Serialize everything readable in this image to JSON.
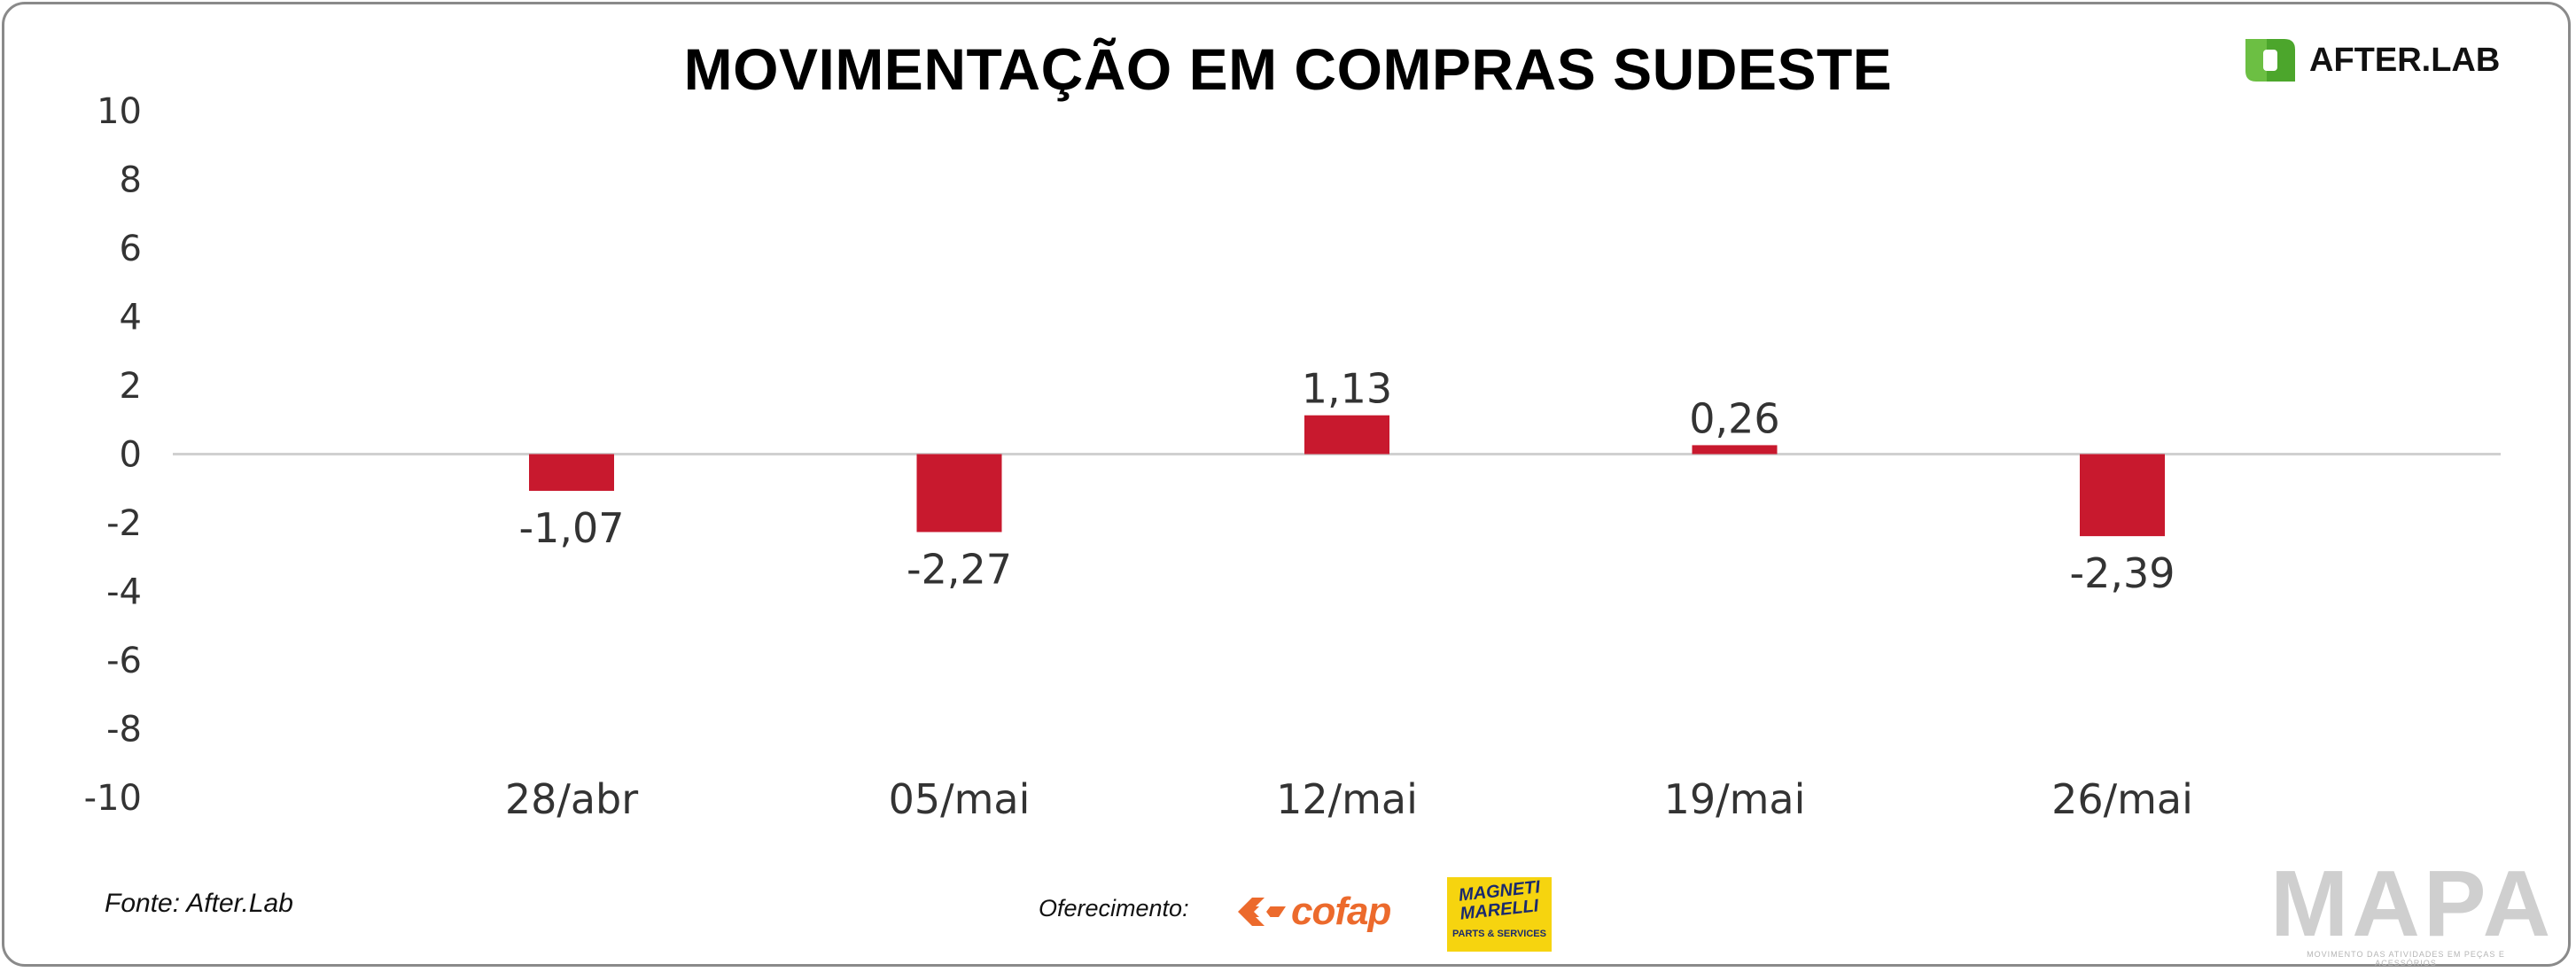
{
  "header": {
    "title": "MOVIMENTAÇÃO EM COMPRAS SUDESTE",
    "brand_name": "AFTER.LAB",
    "brand_color": "#6cbf43"
  },
  "footer": {
    "source": "Fonte: After.Lab",
    "sponsor_label": "Oferecimento:",
    "sponsor_1": "cofap",
    "sponsor_2_line1": "MAGNETI",
    "sponsor_2_line2": "MARELLI",
    "sponsor_2_line3": "PARTS & SERVICES",
    "watermark": "MAPA",
    "watermark_sub": "MOVIMENTO DAS ATIVIDADES EM PEÇAS E ACESSÓRIOS"
  },
  "chart_data": {
    "type": "bar",
    "title": "MOVIMENTAÇÃO EM COMPRAS SUDESTE",
    "categories": [
      "28/abr",
      "05/mai",
      "12/mai",
      "19/mai",
      "26/mai"
    ],
    "values": [
      -1.07,
      -2.27,
      1.13,
      0.26,
      -2.39
    ],
    "value_labels": [
      "-1,07",
      "-2,27",
      "1,13",
      "0,26",
      "-2,39"
    ],
    "y_ticks": [
      10,
      8,
      6,
      4,
      2,
      0,
      -2,
      -4,
      -6,
      -8,
      -10
    ],
    "ylim": [
      -10,
      10
    ],
    "xlabel": "",
    "ylabel": "",
    "grid": false,
    "bar_color": "#c8192e",
    "axis_color": "#d0d0d0"
  }
}
